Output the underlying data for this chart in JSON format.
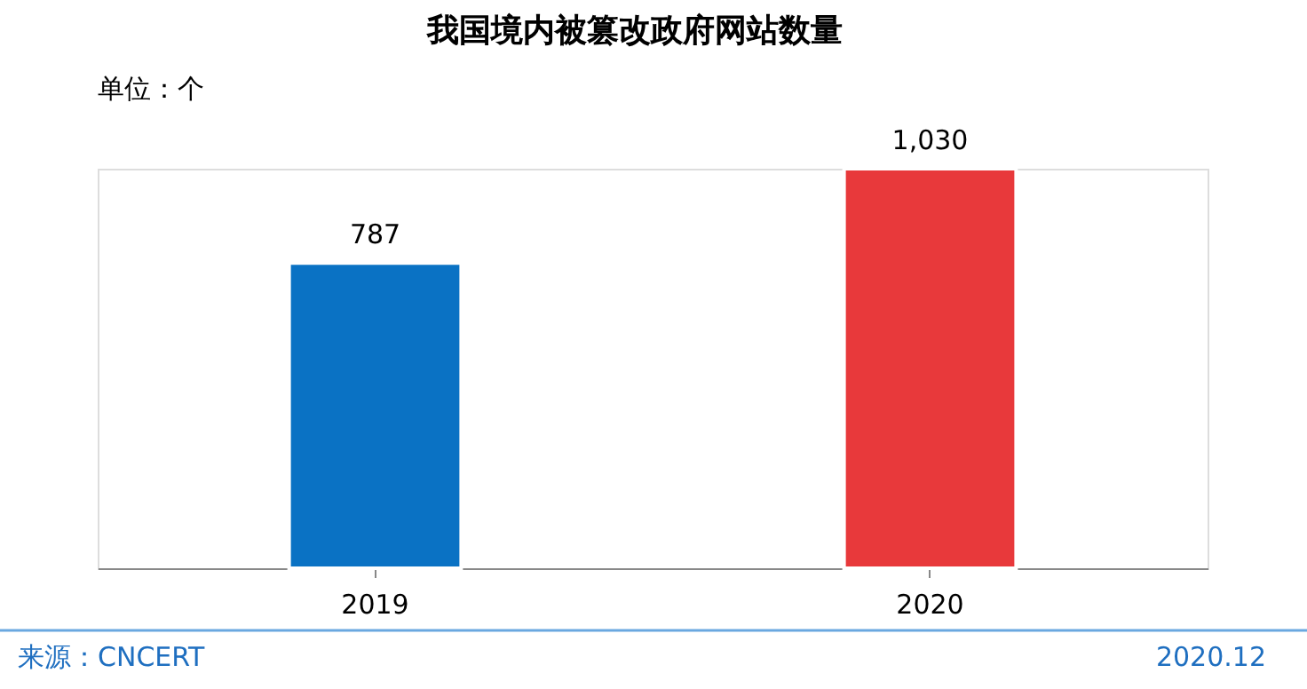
{
  "chart_data": {
    "type": "bar",
    "title": "我国境内被篡改政府网站数量",
    "categories": [
      "2019",
      "2020"
    ],
    "values": [
      787,
      1030
    ],
    "colors": [
      "#0a72c4",
      "#e8393b"
    ],
    "value_labels": [
      "787",
      "1,030"
    ],
    "annotations": [
      "单位：个",
      "来源：CNCERT",
      "2020.12"
    ]
  }
}
